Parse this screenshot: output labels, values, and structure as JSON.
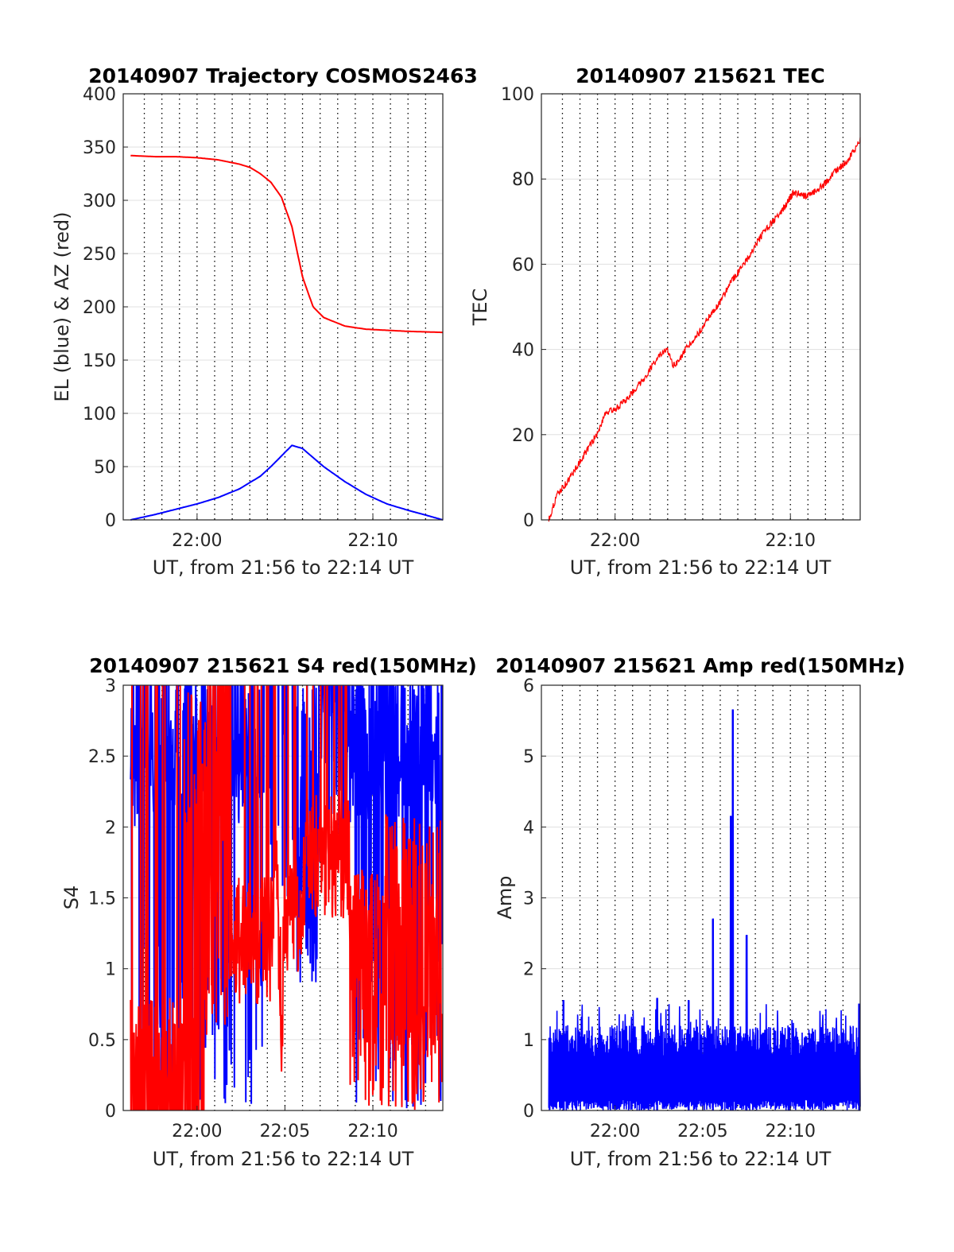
{
  "chart_data": [
    {
      "type": "line",
      "title": "20140907 Trajectory COSMOS2463",
      "xlabel": "UT, from 21:56 to 22:14 UT",
      "ylabel": "EL (blue) & AZ (red)",
      "xlim": [
        21.93,
        22.233
      ],
      "ylim": [
        0,
        400
      ],
      "yticks": [
        0,
        50,
        100,
        150,
        200,
        250,
        300,
        350,
        400
      ],
      "xticks": [
        {
          "v": 22.0,
          "label": "22:00"
        },
        {
          "v": 22.1667,
          "label": "22:10"
        }
      ],
      "grid": true,
      "series": [
        {
          "color": "#0000ff",
          "x": [
            21.937,
            21.96,
            21.98,
            22.0,
            22.02,
            22.04,
            22.06,
            22.07,
            22.08,
            22.085,
            22.09,
            22.1,
            22.12,
            22.14,
            22.16,
            22.18,
            22.2,
            22.215,
            22.233
          ],
          "values": [
            0,
            5,
            10,
            15,
            21,
            29,
            41,
            50,
            60,
            65,
            70,
            67,
            50,
            36,
            24,
            15,
            9,
            5,
            0
          ]
        },
        {
          "color": "#ff0000",
          "x": [
            21.937,
            21.96,
            21.98,
            22.0,
            22.02,
            22.04,
            22.05,
            22.06,
            22.07,
            22.08,
            22.09,
            22.1,
            22.11,
            22.12,
            22.14,
            22.16,
            22.18,
            22.2,
            22.233
          ],
          "values": [
            342,
            341,
            341,
            340,
            338,
            334,
            331,
            325,
            317,
            303,
            275,
            228,
            200,
            190,
            182,
            179,
            178,
            177,
            176
          ]
        }
      ]
    },
    {
      "type": "line",
      "title": "20140907 215621 TEC",
      "xlabel": "UT, from 21:56 to 22:14 UT",
      "ylabel": "TEC",
      "xlim": [
        21.93,
        22.233
      ],
      "ylim": [
        0,
        100
      ],
      "yticks": [
        0,
        20,
        40,
        60,
        80,
        100
      ],
      "xticks": [
        {
          "v": 22.0,
          "label": "22:00"
        },
        {
          "v": 22.1667,
          "label": "22:10"
        }
      ],
      "grid": true,
      "series": [
        {
          "color": "#ff0000",
          "x": [
            21.937,
            21.945,
            21.955,
            21.965,
            21.975,
            21.985,
            21.99,
            22.0,
            22.01,
            22.02,
            22.03,
            22.04,
            22.05,
            22.055,
            22.06,
            22.07,
            22.08,
            22.09,
            22.1,
            22.11,
            22.12,
            22.13,
            22.14,
            22.15,
            22.16,
            22.17,
            22.18,
            22.19,
            22.2,
            22.21,
            22.22,
            22.233
          ],
          "values": [
            0,
            6,
            9,
            13,
            17,
            21,
            25,
            26,
            28,
            31,
            34,
            38,
            40,
            36,
            37,
            41,
            44,
            48,
            51,
            56,
            59,
            63,
            67,
            70,
            73,
            77,
            76,
            77,
            79,
            82,
            84,
            89
          ]
        }
      ]
    },
    {
      "type": "line",
      "title": "20140907 215621 S4 red(150MHz)",
      "xlabel": "UT, from 21:56 to 22:14 UT",
      "ylabel": "S4",
      "xlim": [
        21.93,
        22.233
      ],
      "ylim": [
        0,
        3
      ],
      "yticks": [
        0,
        0.5,
        1,
        1.5,
        2,
        2.5,
        3
      ],
      "xticks": [
        {
          "v": 22.0,
          "label": "22:00"
        },
        {
          "v": 22.0833,
          "label": "22:05"
        },
        {
          "v": 22.1667,
          "label": "22:10"
        }
      ],
      "grid": true,
      "series": [
        {
          "color": "#0000ff",
          "description": "very noisy, mostly saturated at 3 with frequent drops to 0; partially clear gap around 22:05 to 22:08"
        },
        {
          "color": "#ff0000",
          "x": [
            22.07,
            22.075,
            22.08,
            22.085,
            22.09,
            22.095,
            22.1,
            22.105,
            22.11
          ],
          "values": [
            1.2,
            1.7,
            0.7,
            1.4,
            1.6,
            1.3,
            1.5,
            1.9,
            1.8
          ]
        }
      ]
    },
    {
      "type": "line",
      "title": "20140907 215621 Amp red(150MHz)",
      "xlabel": "UT, from 21:56 to 22:14 UT",
      "ylabel": "Amp",
      "xlim": [
        21.93,
        22.233
      ],
      "ylim": [
        0,
        6
      ],
      "yticks": [
        0,
        1,
        2,
        3,
        4,
        5,
        6
      ],
      "xticks": [
        {
          "v": 22.0,
          "label": "22:00"
        },
        {
          "v": 22.0833,
          "label": "22:05"
        },
        {
          "v": 22.1667,
          "label": "22:10"
        }
      ],
      "grid": true,
      "series": [
        {
          "color": "#0000ff",
          "peaks": [
            {
              "x": 21.951,
              "y": 1.55
            },
            {
              "x": 22.04,
              "y": 1.58
            },
            {
              "x": 22.07,
              "y": 1.55
            },
            {
              "x": 22.093,
              "y": 2.7
            },
            {
              "x": 22.11,
              "y": 4.15
            },
            {
              "x": 22.112,
              "y": 5.65
            },
            {
              "x": 22.125,
              "y": 2.47
            },
            {
              "x": 22.232,
              "y": 1.5
            }
          ]
        }
      ]
    }
  ]
}
